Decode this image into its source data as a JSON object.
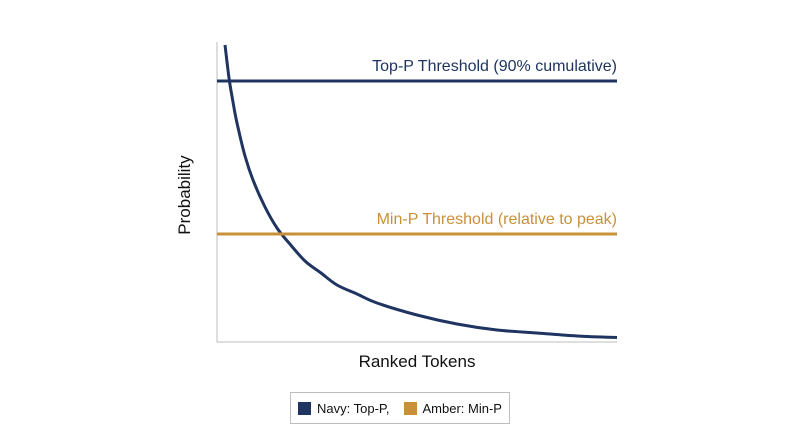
{
  "chart_data": {
    "type": "line",
    "title": "",
    "xlabel": "Ranked Tokens",
    "ylabel": "Probability",
    "xlim": [
      0,
      1
    ],
    "ylim": [
      0,
      1
    ],
    "grid": false,
    "legend_position": "bottom-center",
    "series": [
      {
        "name": "",
        "color": "#1f3461",
        "x": [
          0.02,
          0.03,
          0.04,
          0.05,
          0.07,
          0.09,
          0.12,
          0.15,
          0.18,
          0.22,
          0.26,
          0.3,
          0.35,
          0.4,
          0.5,
          0.6,
          0.7,
          0.8,
          0.9,
          1.0
        ],
        "y": [
          0.99,
          0.88,
          0.8,
          0.73,
          0.62,
          0.54,
          0.45,
          0.38,
          0.33,
          0.27,
          0.23,
          0.19,
          0.16,
          0.13,
          0.09,
          0.06,
          0.04,
          0.03,
          0.02,
          0.015
        ]
      }
    ],
    "thresholds": [
      {
        "label": "Top-P Threshold (90% cumulative)",
        "y": 0.87,
        "color": "#1f3461"
      },
      {
        "label": "Min-P Threshold (relative to peak)",
        "y": 0.36,
        "color": "#c9903a"
      }
    ],
    "legend": [
      {
        "label": "Navy: Top-P,",
        "color": "#1f3461"
      },
      {
        "label": "Amber: Min-P",
        "color": "#c9903a"
      }
    ]
  }
}
